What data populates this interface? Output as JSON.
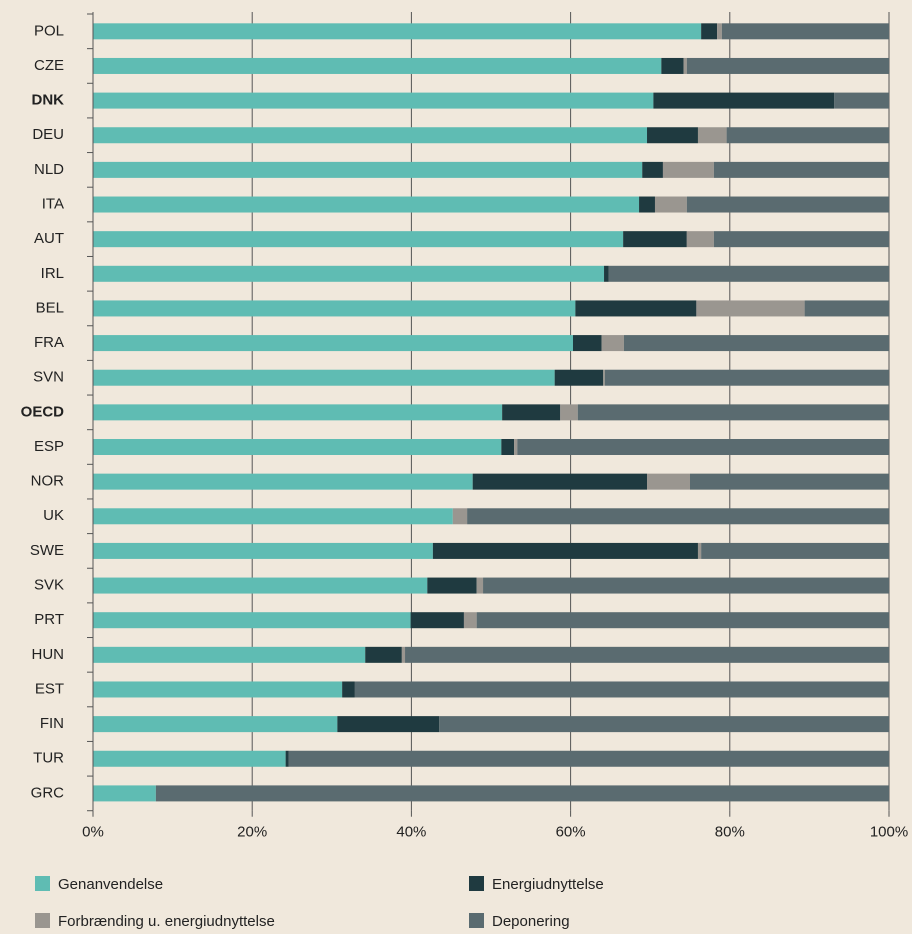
{
  "chart_data": {
    "type": "stacked-bar-horizontal",
    "categories": [
      "POL",
      "CZE",
      "DNK",
      "DEU",
      "NLD",
      "ITA",
      "AUT",
      "IRL",
      "BEL",
      "FRA",
      "SVN",
      "OECD",
      "ESP",
      "NOR",
      "UK",
      "SWE",
      "SVK",
      "PRT",
      "HUN",
      "EST",
      "FIN",
      "TUR",
      "GRC"
    ],
    "highlight_categories": [
      "DNK",
      "OECD"
    ],
    "series": [
      {
        "name": "Genanvendelse",
        "color": "#5fbcb3",
        "values": [
          76.4,
          71.4,
          70.4,
          69.6,
          69.0,
          68.6,
          66.6,
          64.2,
          60.6,
          60.3,
          58.0,
          51.4,
          51.3,
          47.7,
          45.2,
          42.7,
          42.0,
          39.9,
          34.2,
          31.3,
          30.7,
          24.2,
          7.9
        ]
      },
      {
        "name": "Energiudnyttelse",
        "color": "#1f3a40",
        "values": [
          2.0,
          2.8,
          22.7,
          6.4,
          2.6,
          2.0,
          8.0,
          0.6,
          15.2,
          3.6,
          6.1,
          7.3,
          1.6,
          21.9,
          0,
          33.3,
          6.2,
          6.7,
          4.6,
          1.6,
          12.8,
          0.4,
          0
        ]
      },
      {
        "name": "Forbrænding u. energiudnyttelse",
        "color": "#9a9690",
        "values": [
          0.6,
          0.4,
          0,
          3.6,
          6.4,
          4.0,
          3.4,
          0,
          13.6,
          2.8,
          0.2,
          2.2,
          0.4,
          5.4,
          1.8,
          0.4,
          0.8,
          1.6,
          0.4,
          0,
          0,
          0,
          0
        ]
      },
      {
        "name": "Deponering",
        "color": "#5a6b70",
        "values": [
          21.0,
          25.4,
          6.9,
          20.4,
          22.0,
          25.4,
          22.0,
          35.2,
          10.6,
          33.3,
          35.7,
          39.1,
          46.7,
          25.0,
          53.0,
          23.6,
          51.0,
          51.8,
          60.8,
          67.1,
          56.5,
          75.4,
          92.1
        ]
      }
    ],
    "xlim": [
      0,
      100
    ],
    "xticks": [
      {
        "value": 0,
        "label": "0%"
      },
      {
        "value": 20,
        "label": "20%"
      },
      {
        "value": 40,
        "label": "40%"
      },
      {
        "value": 60,
        "label": "60%"
      },
      {
        "value": 80,
        "label": "80%"
      },
      {
        "value": 100,
        "label": "100%"
      }
    ],
    "grid": true
  }
}
